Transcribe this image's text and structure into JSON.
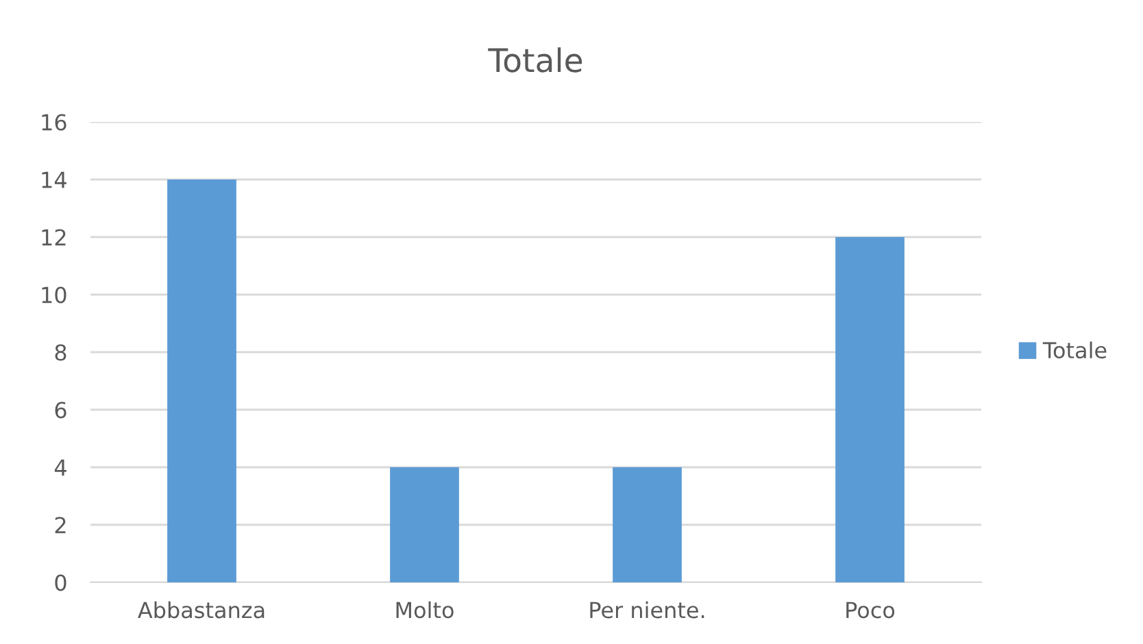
{
  "chart_data": {
    "type": "bar",
    "title": "Totale",
    "categories": [
      "Abbastanza",
      "Molto",
      "Per niente.",
      "Poco"
    ],
    "series": [
      {
        "name": "Totale",
        "color": "#5b9bd5",
        "values": [
          14,
          4,
          4,
          12
        ]
      }
    ],
    "ylim": [
      0,
      16
    ],
    "yticks": [
      0,
      2,
      4,
      6,
      8,
      10,
      12,
      14,
      16
    ],
    "grid": "y",
    "legend": "right"
  }
}
